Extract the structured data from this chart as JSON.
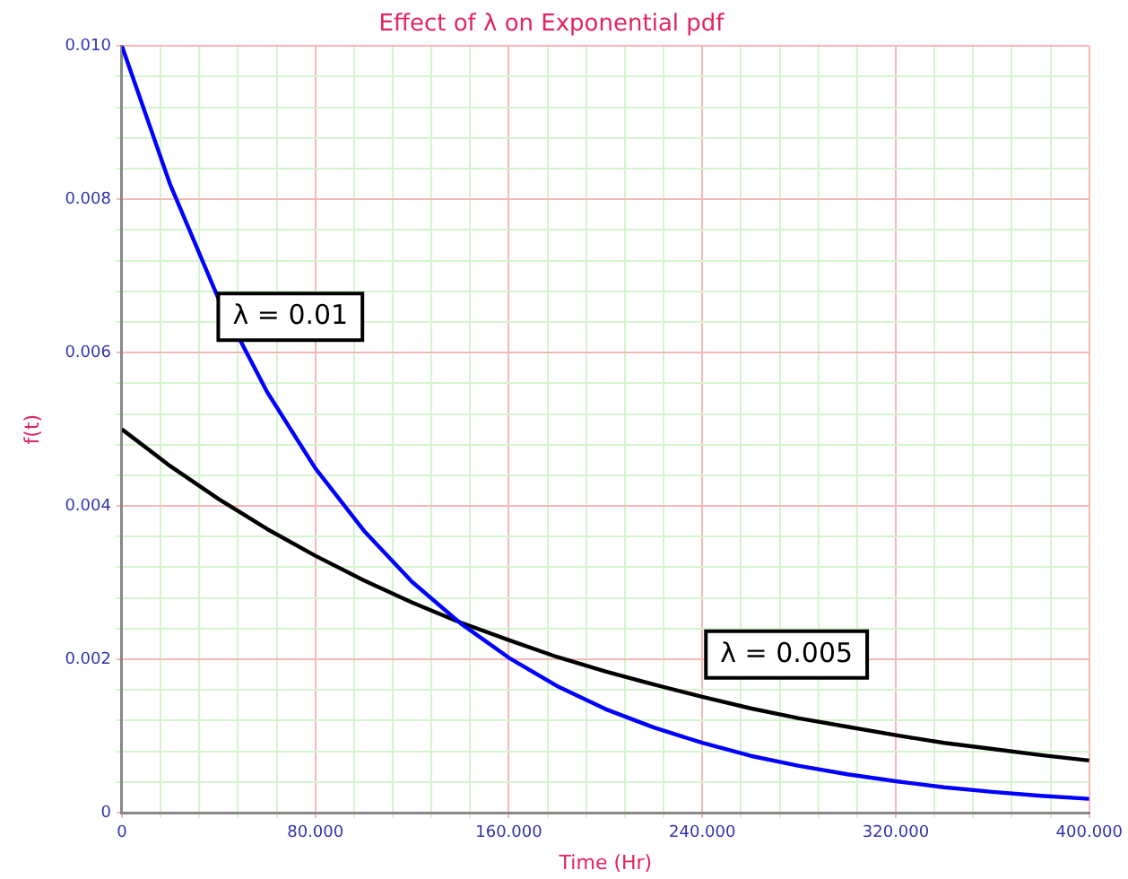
{
  "chart_data": {
    "type": "line",
    "title": "Effect of λ on Exponential pdf",
    "xlabel": "Time (Hr)",
    "ylabel": "f(t)",
    "x": [
      0,
      20,
      40,
      60,
      80,
      100,
      120,
      140,
      160,
      180,
      200,
      220,
      240,
      260,
      280,
      300,
      320,
      340,
      360,
      380,
      400
    ],
    "series": [
      {
        "name": "λ = 0.01",
        "color": "#0000ff",
        "values": [
          0.01,
          0.00819,
          0.0067,
          0.00549,
          0.00449,
          0.00368,
          0.00301,
          0.00247,
          0.00202,
          0.00165,
          0.00135,
          0.00111,
          0.00091,
          0.00074,
          0.00061,
          0.0005,
          0.00041,
          0.00033,
          0.00027,
          0.00022,
          0.00018
        ]
      },
      {
        "name": "λ = 0.005",
        "color": "#000000",
        "values": [
          0.005,
          0.00452,
          0.00409,
          0.0037,
          0.00335,
          0.00303,
          0.00274,
          0.00248,
          0.00225,
          0.00203,
          0.00184,
          0.00167,
          0.00151,
          0.00136,
          0.00123,
          0.00112,
          0.00101,
          0.00091,
          0.00083,
          0.00075,
          0.00068
        ]
      }
    ],
    "xlim": [
      0,
      400
    ],
    "xticks": [
      0,
      {
        "value": 16,
        "label": null
      },
      {
        "value": 32,
        "label": null
      },
      {
        "value": 48,
        "label": null
      },
      {
        "value": 64,
        "label": null
      },
      {
        "value": 80,
        "label": "80.000"
      },
      {
        "value": 96,
        "label": null
      },
      {
        "value": 112,
        "label": null
      },
      {
        "value": 128,
        "label": null
      },
      {
        "value": 144,
        "label": null
      },
      {
        "value": 160,
        "label": "160.000"
      },
      {
        "value": 176,
        "label": null
      },
      {
        "value": 192,
        "label": null
      },
      {
        "value": 208,
        "label": null
      },
      {
        "value": 224,
        "label": null
      },
      {
        "value": 240,
        "label": "240.000"
      },
      {
        "value": 256,
        "label": null
      },
      {
        "value": 272,
        "label": null
      },
      {
        "value": 288,
        "label": null
      },
      {
        "value": 304,
        "label": null
      },
      {
        "value": 320,
        "label": "320.000"
      },
      {
        "value": 336,
        "label": null
      },
      {
        "value": 352,
        "label": null
      },
      {
        "value": 368,
        "label": null
      },
      {
        "value": 384,
        "label": null
      },
      {
        "value": 400,
        "label": "400.000"
      }
    ],
    "ylim": [
      0,
      0.01
    ],
    "yticks": [
      0,
      {
        "value": 0.0004,
        "label": null
      },
      {
        "value": 0.0008,
        "label": null
      },
      {
        "value": 0.0012,
        "label": null
      },
      {
        "value": 0.0016,
        "label": null
      },
      {
        "value": 0.002,
        "label": "0.002"
      },
      {
        "value": 0.0024,
        "label": null
      },
      {
        "value": 0.0028,
        "label": null
      },
      {
        "value": 0.0032,
        "label": null
      },
      {
        "value": 0.0036,
        "label": null
      },
      {
        "value": 0.004,
        "label": "0.004"
      },
      {
        "value": 0.0044,
        "label": null
      },
      {
        "value": 0.0048,
        "label": null
      },
      {
        "value": 0.0052,
        "label": null
      },
      {
        "value": 0.0056,
        "label": null
      },
      {
        "value": 0.006,
        "label": "0.006"
      },
      {
        "value": 0.0064,
        "label": null
      },
      {
        "value": 0.0068,
        "label": null
      },
      {
        "value": 0.0072,
        "label": null
      },
      {
        "value": 0.0076,
        "label": null
      },
      {
        "value": 0.008,
        "label": "0.008"
      },
      {
        "value": 0.0084,
        "label": null
      },
      {
        "value": 0.0088,
        "label": null
      },
      {
        "value": 0.0092,
        "label": null
      },
      {
        "value": 0.0096,
        "label": null
      },
      {
        "value": 0.01,
        "label": "0.010"
      }
    ],
    "grid": true,
    "legend": false,
    "marker": "none",
    "line_style": "solid"
  }
}
